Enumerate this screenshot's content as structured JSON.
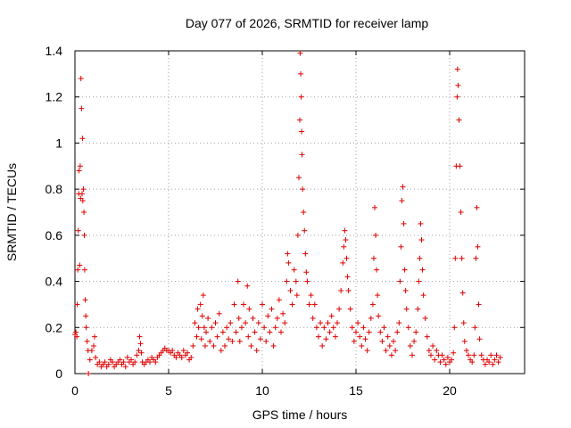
{
  "chart_data": {
    "type": "scatter",
    "title": "Day 077 of 2026, SRMTID for receiver lamp",
    "xlabel": "GPS time / hours",
    "ylabel": "SRMTID / TECUs",
    "xlim": [
      0,
      24
    ],
    "ylim": [
      0,
      1.4
    ],
    "x_ticks": [
      0,
      5,
      10,
      15,
      20
    ],
    "y_ticks": [
      0,
      0.2,
      0.4,
      0.6,
      0.8,
      1,
      1.2,
      1.4
    ],
    "x_tick_labels": [
      "0",
      "5",
      "10",
      "15",
      "20"
    ],
    "y_tick_labels": [
      "0",
      "0.2",
      "0.4",
      "0.6",
      "0.8",
      "1",
      "1.2",
      "1.4"
    ],
    "grid": true,
    "marker": "+",
    "series": [
      {
        "name": "SRMTID",
        "color": "#e00000",
        "points": [
          [
            0.0,
            0.17
          ],
          [
            0.05,
            0.18
          ],
          [
            0.1,
            0.16
          ],
          [
            0.12,
            0.3
          ],
          [
            0.15,
            0.45
          ],
          [
            0.18,
            0.62
          ],
          [
            0.2,
            0.78
          ],
          [
            0.22,
            0.88
          ],
          [
            0.25,
            0.47
          ],
          [
            0.28,
            0.9
          ],
          [
            0.3,
            0.76
          ],
          [
            0.32,
            1.28
          ],
          [
            0.35,
            1.15
          ],
          [
            0.38,
            0.78
          ],
          [
            0.4,
            1.02
          ],
          [
            0.42,
            0.75
          ],
          [
            0.45,
            0.8
          ],
          [
            0.48,
            0.7
          ],
          [
            0.5,
            0.6
          ],
          [
            0.52,
            0.45
          ],
          [
            0.55,
            0.32
          ],
          [
            0.58,
            0.25
          ],
          [
            0.6,
            0.2
          ],
          [
            0.65,
            0.14
          ],
          [
            0.7,
            0.1
          ],
          [
            0.72,
            0.0
          ],
          [
            0.8,
            0.06
          ],
          [
            0.9,
            0.1
          ],
          [
            1.0,
            0.12
          ],
          [
            1.05,
            0.16
          ],
          [
            1.1,
            0.07
          ],
          [
            1.2,
            0.04
          ],
          [
            1.3,
            0.05
          ],
          [
            1.4,
            0.03
          ],
          [
            1.5,
            0.04
          ],
          [
            1.6,
            0.05
          ],
          [
            1.7,
            0.03
          ],
          [
            1.8,
            0.04
          ],
          [
            1.9,
            0.06
          ],
          [
            2.0,
            0.05
          ],
          [
            2.1,
            0.03
          ],
          [
            2.2,
            0.04
          ],
          [
            2.3,
            0.05
          ],
          [
            2.4,
            0.06
          ],
          [
            2.5,
            0.04
          ],
          [
            2.6,
            0.05
          ],
          [
            2.7,
            0.03
          ],
          [
            2.8,
            0.07
          ],
          [
            2.9,
            0.05
          ],
          [
            3.0,
            0.06
          ],
          [
            3.1,
            0.04
          ],
          [
            3.2,
            0.05
          ],
          [
            3.3,
            0.08
          ],
          [
            3.4,
            0.1
          ],
          [
            3.45,
            0.16
          ],
          [
            3.5,
            0.13
          ],
          [
            3.55,
            0.09
          ],
          [
            3.6,
            0.05
          ],
          [
            3.7,
            0.04
          ],
          [
            3.8,
            0.05
          ],
          [
            3.9,
            0.06
          ],
          [
            4.0,
            0.05
          ],
          [
            4.1,
            0.07
          ],
          [
            4.2,
            0.06
          ],
          [
            4.3,
            0.05
          ],
          [
            4.4,
            0.07
          ],
          [
            4.5,
            0.08
          ],
          [
            4.6,
            0.09
          ],
          [
            4.7,
            0.1
          ],
          [
            4.8,
            0.11
          ],
          [
            4.9,
            0.1
          ],
          [
            5.0,
            0.1
          ],
          [
            5.1,
            0.09
          ],
          [
            5.2,
            0.1
          ],
          [
            5.3,
            0.08
          ],
          [
            5.4,
            0.07
          ],
          [
            5.5,
            0.09
          ],
          [
            5.6,
            0.08
          ],
          [
            5.7,
            0.07
          ],
          [
            5.8,
            0.1
          ],
          [
            5.9,
            0.08
          ],
          [
            6.0,
            0.09
          ],
          [
            6.1,
            0.06
          ],
          [
            6.2,
            0.07
          ],
          [
            6.3,
            0.12
          ],
          [
            6.4,
            0.22
          ],
          [
            6.5,
            0.16
          ],
          [
            6.55,
            0.28
          ],
          [
            6.6,
            0.2
          ],
          [
            6.7,
            0.3
          ],
          [
            6.75,
            0.15
          ],
          [
            6.8,
            0.25
          ],
          [
            6.85,
            0.34
          ],
          [
            6.9,
            0.2
          ],
          [
            6.95,
            0.12
          ],
          [
            7.0,
            0.18
          ],
          [
            7.1,
            0.24
          ],
          [
            7.2,
            0.14
          ],
          [
            7.3,
            0.2
          ],
          [
            7.4,
            0.12
          ],
          [
            7.5,
            0.22
          ],
          [
            7.6,
            0.16
          ],
          [
            7.7,
            0.26
          ],
          [
            7.8,
            0.1
          ],
          [
            7.9,
            0.18
          ],
          [
            8.0,
            0.12
          ],
          [
            8.1,
            0.2
          ],
          [
            8.2,
            0.15
          ],
          [
            8.3,
            0.22
          ],
          [
            8.4,
            0.14
          ],
          [
            8.5,
            0.3
          ],
          [
            8.6,
            0.18
          ],
          [
            8.7,
            0.4
          ],
          [
            8.75,
            0.24
          ],
          [
            8.8,
            0.14
          ],
          [
            8.9,
            0.2
          ],
          [
            9.0,
            0.3
          ],
          [
            9.1,
            0.22
          ],
          [
            9.2,
            0.38
          ],
          [
            9.25,
            0.16
          ],
          [
            9.3,
            0.28
          ],
          [
            9.4,
            0.12
          ],
          [
            9.5,
            0.24
          ],
          [
            9.6,
            0.18
          ],
          [
            9.7,
            0.1
          ],
          [
            9.8,
            0.22
          ],
          [
            9.9,
            0.15
          ],
          [
            10.0,
            0.3
          ],
          [
            10.1,
            0.2
          ],
          [
            10.2,
            0.14
          ],
          [
            10.3,
            0.25
          ],
          [
            10.4,
            0.18
          ],
          [
            10.5,
            0.28
          ],
          [
            10.6,
            0.12
          ],
          [
            10.7,
            0.2
          ],
          [
            10.8,
            0.24
          ],
          [
            10.9,
            0.32
          ],
          [
            11.0,
            0.18
          ],
          [
            11.1,
            0.26
          ],
          [
            11.2,
            0.22
          ],
          [
            11.3,
            0.4
          ],
          [
            11.35,
            0.52
          ],
          [
            11.4,
            0.48
          ],
          [
            11.5,
            0.36
          ],
          [
            11.6,
            0.3
          ],
          [
            11.7,
            0.45
          ],
          [
            11.8,
            0.4
          ],
          [
            11.85,
            0.34
          ],
          [
            11.9,
            0.6
          ],
          [
            11.95,
            0.85
          ],
          [
            12.0,
            1.1
          ],
          [
            12.02,
            1.39
          ],
          [
            12.05,
            1.3
          ],
          [
            12.08,
            1.2
          ],
          [
            12.1,
            1.05
          ],
          [
            12.12,
            0.95
          ],
          [
            12.15,
            0.8
          ],
          [
            12.2,
            0.7
          ],
          [
            12.25,
            0.62
          ],
          [
            12.3,
            0.52
          ],
          [
            12.35,
            0.44
          ],
          [
            12.4,
            0.4
          ],
          [
            12.5,
            0.3
          ],
          [
            12.6,
            0.34
          ],
          [
            12.7,
            0.24
          ],
          [
            12.8,
            0.3
          ],
          [
            12.9,
            0.2
          ],
          [
            13.0,
            0.16
          ],
          [
            13.1,
            0.22
          ],
          [
            13.2,
            0.12
          ],
          [
            13.3,
            0.2
          ],
          [
            13.4,
            0.15
          ],
          [
            13.5,
            0.22
          ],
          [
            13.6,
            0.18
          ],
          [
            13.7,
            0.25
          ],
          [
            13.8,
            0.2
          ],
          [
            13.9,
            0.16
          ],
          [
            14.0,
            0.22
          ],
          [
            14.1,
            0.28
          ],
          [
            14.2,
            0.36
          ],
          [
            14.3,
            0.48
          ],
          [
            14.35,
            0.55
          ],
          [
            14.4,
            0.62
          ],
          [
            14.45,
            0.58
          ],
          [
            14.5,
            0.5
          ],
          [
            14.55,
            0.42
          ],
          [
            14.6,
            0.36
          ],
          [
            14.7,
            0.28
          ],
          [
            14.8,
            0.2
          ],
          [
            14.9,
            0.14
          ],
          [
            15.0,
            0.18
          ],
          [
            15.1,
            0.22
          ],
          [
            15.2,
            0.16
          ],
          [
            15.3,
            0.12
          ],
          [
            15.4,
            0.2
          ],
          [
            15.5,
            0.15
          ],
          [
            15.6,
            0.1
          ],
          [
            15.7,
            0.18
          ],
          [
            15.8,
            0.24
          ],
          [
            15.9,
            0.3
          ],
          [
            15.95,
            0.5
          ],
          [
            16.0,
            0.72
          ],
          [
            16.05,
            0.6
          ],
          [
            16.1,
            0.45
          ],
          [
            16.15,
            0.34
          ],
          [
            16.2,
            0.25
          ],
          [
            16.3,
            0.18
          ],
          [
            16.4,
            0.14
          ],
          [
            16.5,
            0.2
          ],
          [
            16.6,
            0.1
          ],
          [
            16.7,
            0.16
          ],
          [
            16.8,
            0.12
          ],
          [
            16.9,
            0.08
          ],
          [
            17.0,
            0.14
          ],
          [
            17.1,
            0.1
          ],
          [
            17.2,
            0.18
          ],
          [
            17.3,
            0.22
          ],
          [
            17.35,
            0.4
          ],
          [
            17.4,
            0.55
          ],
          [
            17.45,
            0.75
          ],
          [
            17.5,
            0.81
          ],
          [
            17.55,
            0.65
          ],
          [
            17.6,
            0.45
          ],
          [
            17.65,
            0.36
          ],
          [
            17.7,
            0.28
          ],
          [
            17.8,
            0.2
          ],
          [
            17.9,
            0.12
          ],
          [
            18.0,
            0.08
          ],
          [
            18.1,
            0.14
          ],
          [
            18.2,
            0.18
          ],
          [
            18.3,
            0.28
          ],
          [
            18.35,
            0.4
          ],
          [
            18.4,
            0.5
          ],
          [
            18.45,
            0.65
          ],
          [
            18.5,
            0.58
          ],
          [
            18.55,
            0.45
          ],
          [
            18.6,
            0.34
          ],
          [
            18.7,
            0.24
          ],
          [
            18.8,
            0.16
          ],
          [
            18.9,
            0.1
          ],
          [
            19.0,
            0.08
          ],
          [
            19.1,
            0.12
          ],
          [
            19.2,
            0.06
          ],
          [
            19.3,
            0.1
          ],
          [
            19.4,
            0.08
          ],
          [
            19.5,
            0.05
          ],
          [
            19.6,
            0.08
          ],
          [
            19.7,
            0.06
          ],
          [
            19.8,
            0.04
          ],
          [
            19.9,
            0.07
          ],
          [
            20.0,
            0.05
          ],
          [
            20.1,
            0.06
          ],
          [
            20.2,
            0.09
          ],
          [
            20.25,
            0.2
          ],
          [
            20.3,
            0.5
          ],
          [
            20.35,
            0.9
          ],
          [
            20.4,
            1.2
          ],
          [
            20.42,
            1.32
          ],
          [
            20.45,
            1.25
          ],
          [
            20.5,
            1.1
          ],
          [
            20.55,
            0.9
          ],
          [
            20.6,
            0.7
          ],
          [
            20.65,
            0.5
          ],
          [
            20.7,
            0.35
          ],
          [
            20.75,
            0.22
          ],
          [
            20.8,
            0.14
          ],
          [
            20.9,
            0.1
          ],
          [
            21.0,
            0.08
          ],
          [
            21.1,
            0.06
          ],
          [
            21.2,
            0.05
          ],
          [
            21.3,
            0.08
          ],
          [
            21.35,
            0.2
          ],
          [
            21.4,
            0.5
          ],
          [
            21.45,
            0.72
          ],
          [
            21.5,
            0.55
          ],
          [
            21.55,
            0.3
          ],
          [
            21.6,
            0.15
          ],
          [
            21.7,
            0.08
          ],
          [
            21.8,
            0.06
          ],
          [
            21.9,
            0.04
          ],
          [
            22.0,
            0.06
          ],
          [
            22.1,
            0.05
          ],
          [
            22.2,
            0.08
          ],
          [
            22.3,
            0.04
          ],
          [
            22.4,
            0.06
          ],
          [
            22.5,
            0.08
          ],
          [
            22.6,
            0.05
          ],
          [
            22.7,
            0.07
          ]
        ]
      }
    ]
  }
}
